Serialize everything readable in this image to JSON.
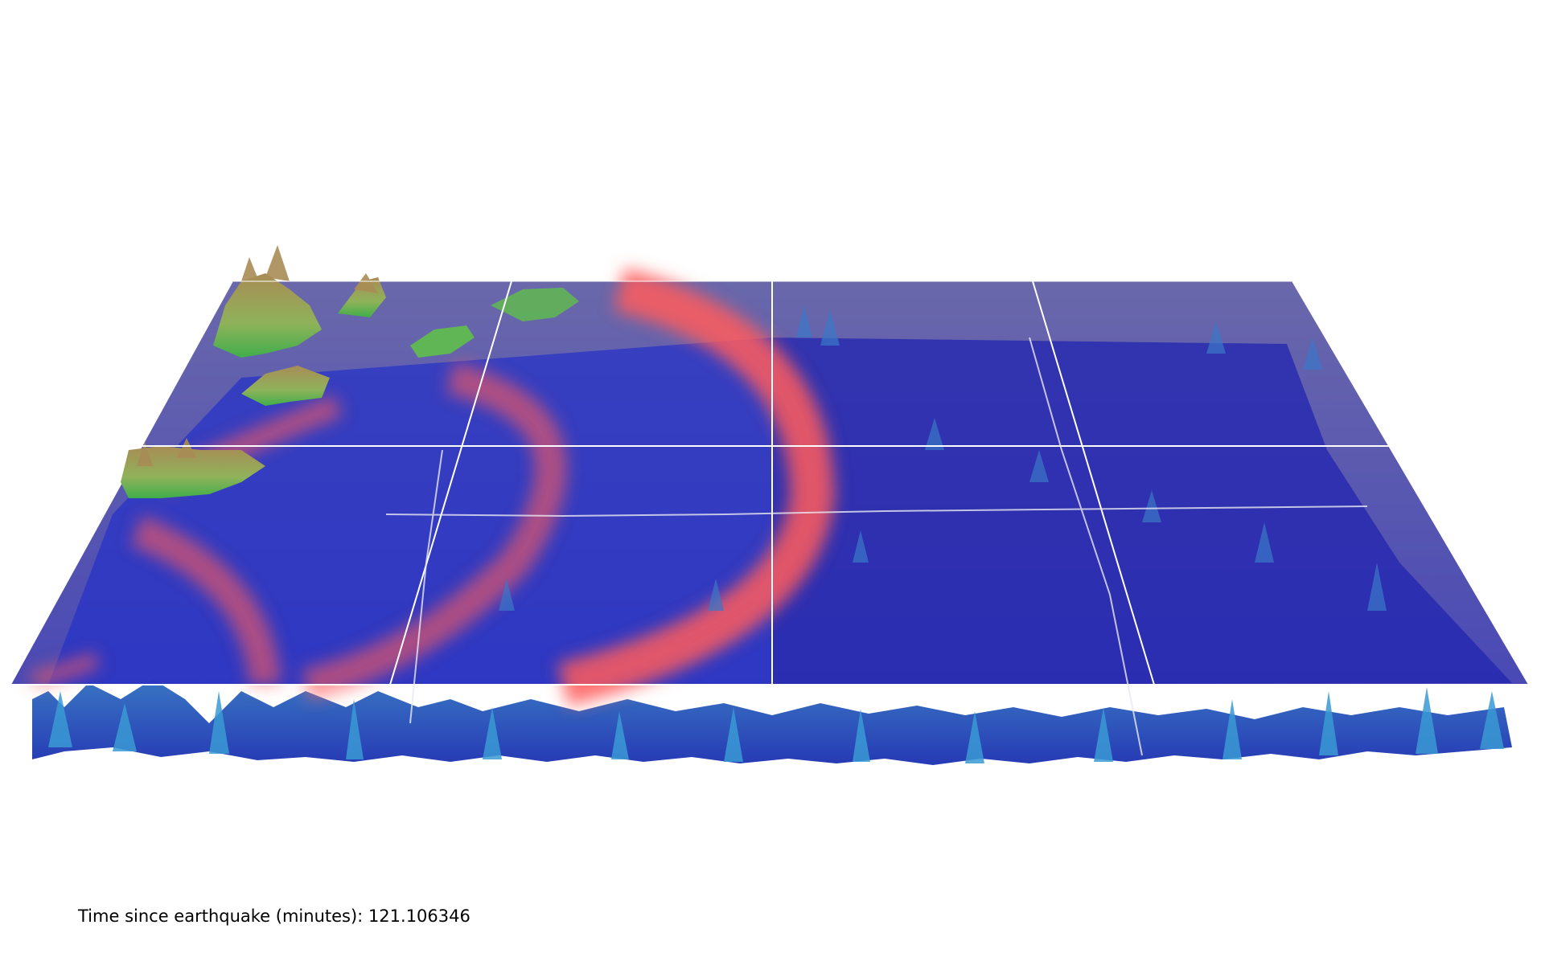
{
  "caption": {
    "label": "Time since earthquake (minutes):",
    "value": "121.106346"
  },
  "colors": {
    "sea_plane": "#6b68a3",
    "deep_ocean": "#1c1fb8",
    "wave_crest": "#ff6060",
    "seafloor_ridge": "#2d7fc0",
    "land_low": "#5fbf4a",
    "land_high": "#b9a05c",
    "grid_line": "#ffffff"
  },
  "icons": {
    "land": "coastline-relief",
    "wave": "tsunami-wavefront"
  }
}
